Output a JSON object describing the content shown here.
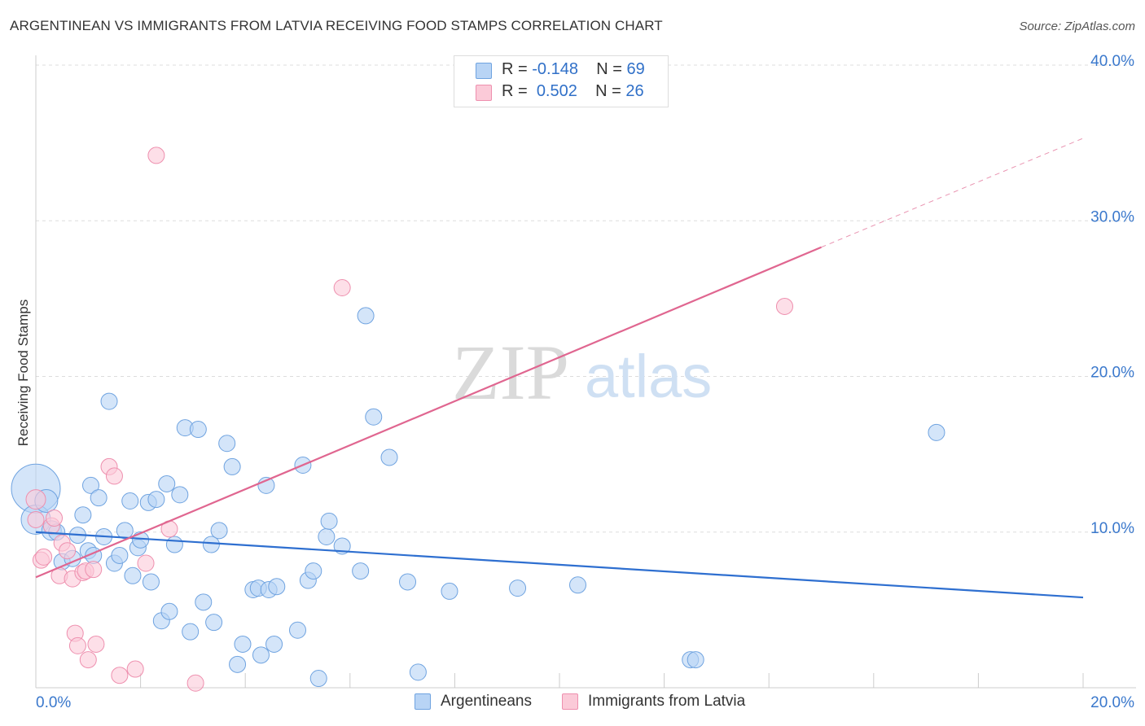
{
  "title": "ARGENTINEAN VS IMMIGRANTS FROM LATVIA RECEIVING FOOD STAMPS CORRELATION CHART",
  "source": "Source: ZipAtlas.com",
  "watermark": {
    "zip": "ZIP",
    "atlas": "atlas"
  },
  "legend": {
    "rows": [
      {
        "r_label": "R =",
        "r_value": "-0.148",
        "n_label": "N =",
        "n_value": "69",
        "color": "#b8d4f5",
        "border": "#6fa3e0"
      },
      {
        "r_label": "R =",
        "r_value": "0.502",
        "n_label": "N =",
        "n_value": "26",
        "color": "#fbcad8",
        "border": "#ee8fae"
      }
    ]
  },
  "bottom_legend": [
    {
      "label": "Argentineans",
      "color": "#b8d4f5",
      "border": "#6fa3e0"
    },
    {
      "label": "Immigrants from Latvia",
      "color": "#fbcad8",
      "border": "#ee8fae"
    }
  ],
  "chart_data": {
    "type": "scatter",
    "title": "ARGENTINEAN VS IMMIGRANTS FROM LATVIA RECEIVING FOOD STAMPS CORRELATION CHART",
    "xlabel": "",
    "ylabel": "Receiving Food Stamps",
    "xlim": [
      0,
      20
    ],
    "ylim": [
      0,
      40
    ],
    "x_tick_labels": [
      "0.0%",
      "20.0%"
    ],
    "y_ticks": [
      10,
      20,
      30,
      40
    ],
    "y_tick_labels": [
      "10.0%",
      "20.0%",
      "30.0%",
      "40.0%"
    ],
    "grid": true,
    "legend_position": "top-center",
    "series": [
      {
        "name": "Argentineans",
        "color": "#6fa3e0",
        "fill": "#b8d4f5",
        "trend_color": "#2e6fd0",
        "trend": {
          "x0": 0,
          "y0": 10.0,
          "x1": 20,
          "y1": 5.8
        },
        "points": [
          [
            0.0,
            12.8,
            30
          ],
          [
            0.0,
            10.8,
            18
          ],
          [
            0.2,
            12.0,
            14
          ],
          [
            0.3,
            10.1,
            12
          ],
          [
            0.4,
            10.0,
            10
          ],
          [
            0.5,
            8.1,
            10
          ],
          [
            0.7,
            8.3,
            10
          ],
          [
            0.8,
            9.8,
            10
          ],
          [
            0.9,
            11.1,
            10
          ],
          [
            1.0,
            8.8,
            10
          ],
          [
            1.05,
            13.0,
            10
          ],
          [
            1.1,
            8.5,
            10
          ],
          [
            1.2,
            12.2,
            10
          ],
          [
            1.3,
            9.7,
            10
          ],
          [
            1.4,
            18.4,
            10
          ],
          [
            1.5,
            8.0,
            10
          ],
          [
            1.6,
            8.5,
            10
          ],
          [
            1.7,
            10.1,
            10
          ],
          [
            1.8,
            12.0,
            10
          ],
          [
            1.85,
            7.2,
            10
          ],
          [
            1.95,
            9.0,
            10
          ],
          [
            2.0,
            9.5,
            10
          ],
          [
            2.15,
            11.9,
            10
          ],
          [
            2.2,
            6.8,
            10
          ],
          [
            2.3,
            12.1,
            10
          ],
          [
            2.4,
            4.3,
            10
          ],
          [
            2.5,
            13.1,
            10
          ],
          [
            2.55,
            4.9,
            10
          ],
          [
            2.65,
            9.2,
            10
          ],
          [
            2.75,
            12.4,
            10
          ],
          [
            2.85,
            16.7,
            10
          ],
          [
            2.95,
            3.6,
            10
          ],
          [
            3.1,
            16.6,
            10
          ],
          [
            3.2,
            5.5,
            10
          ],
          [
            3.35,
            9.2,
            10
          ],
          [
            3.4,
            4.2,
            10
          ],
          [
            3.5,
            10.1,
            10
          ],
          [
            3.65,
            15.7,
            10
          ],
          [
            3.75,
            14.2,
            10
          ],
          [
            3.85,
            1.5,
            10
          ],
          [
            3.95,
            2.8,
            10
          ],
          [
            4.15,
            6.3,
            10
          ],
          [
            4.25,
            6.4,
            10
          ],
          [
            4.3,
            2.1,
            10
          ],
          [
            4.4,
            13.0,
            10
          ],
          [
            4.45,
            6.3,
            10
          ],
          [
            4.55,
            2.8,
            10
          ],
          [
            4.6,
            6.5,
            10
          ],
          [
            5.0,
            3.7,
            10
          ],
          [
            5.1,
            14.3,
            10
          ],
          [
            5.2,
            6.9,
            10
          ],
          [
            5.3,
            7.5,
            10
          ],
          [
            5.4,
            0.6,
            10
          ],
          [
            5.55,
            9.7,
            10
          ],
          [
            5.6,
            10.7,
            10
          ],
          [
            5.85,
            9.1,
            10
          ],
          [
            6.2,
            7.5,
            10
          ],
          [
            6.3,
            23.9,
            10
          ],
          [
            6.45,
            17.4,
            10
          ],
          [
            6.75,
            14.8,
            10
          ],
          [
            7.1,
            6.8,
            10
          ],
          [
            7.3,
            1.0,
            10
          ],
          [
            7.9,
            6.2,
            10
          ],
          [
            9.2,
            6.4,
            10
          ],
          [
            10.35,
            6.6,
            10
          ],
          [
            12.5,
            1.8,
            10
          ],
          [
            12.6,
            1.8,
            10
          ],
          [
            17.2,
            16.4,
            10
          ]
        ]
      },
      {
        "name": "Immigrants from Latvia",
        "color": "#ee8fae",
        "fill": "#fbcad8",
        "trend_color": "#e06690",
        "trend": {
          "x0": 0,
          "y0": 7.1,
          "x1": 15.0,
          "y1": 28.3
        },
        "trend_dashed_to": {
          "x": 20,
          "y": 35.3
        },
        "points": [
          [
            0.0,
            12.1,
            12
          ],
          [
            0.0,
            10.8,
            10
          ],
          [
            0.1,
            8.2,
            10
          ],
          [
            0.15,
            8.4,
            10
          ],
          [
            0.3,
            10.4,
            10
          ],
          [
            0.35,
            10.9,
            10
          ],
          [
            0.45,
            7.2,
            10
          ],
          [
            0.5,
            9.3,
            10
          ],
          [
            0.6,
            8.8,
            10
          ],
          [
            0.7,
            7.0,
            10
          ],
          [
            0.75,
            3.5,
            10
          ],
          [
            0.8,
            2.7,
            10
          ],
          [
            0.9,
            7.4,
            10
          ],
          [
            0.95,
            7.5,
            10
          ],
          [
            1.0,
            1.8,
            10
          ],
          [
            1.1,
            7.6,
            10
          ],
          [
            1.15,
            2.8,
            10
          ],
          [
            1.4,
            14.2,
            10
          ],
          [
            1.5,
            13.6,
            10
          ],
          [
            1.6,
            0.8,
            10
          ],
          [
            1.9,
            1.2,
            10
          ],
          [
            2.1,
            8.0,
            10
          ],
          [
            2.3,
            34.2,
            10
          ],
          [
            2.55,
            10.2,
            10
          ],
          [
            3.05,
            0.3,
            10
          ],
          [
            5.85,
            25.7,
            10
          ],
          [
            14.3,
            24.5,
            10
          ]
        ]
      }
    ]
  }
}
